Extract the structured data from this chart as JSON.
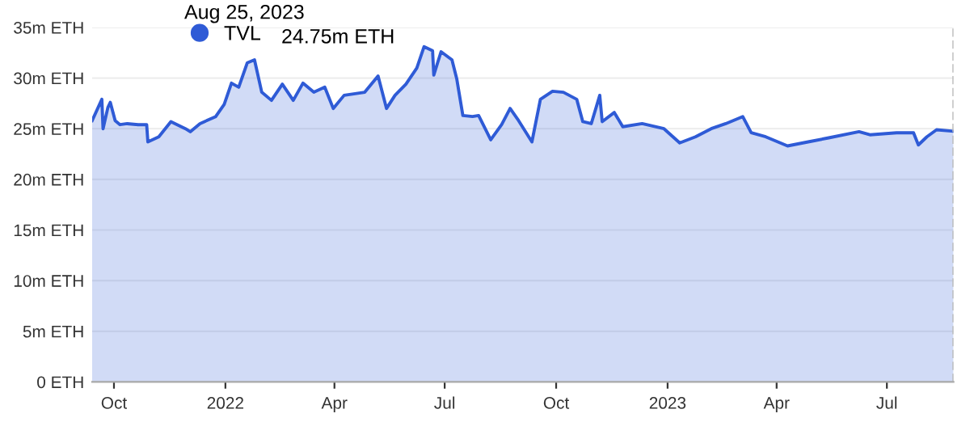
{
  "chart_data": {
    "type": "area",
    "x": [
      "2021-09-13",
      "2021-09-21",
      "2021-09-22",
      "2021-09-26",
      "2021-09-28",
      "2021-10-02",
      "2021-10-06",
      "2021-10-12",
      "2021-10-21",
      "2021-10-28",
      "2021-10-29",
      "2021-11-07",
      "2021-11-17",
      "2021-11-29",
      "2021-12-03",
      "2021-12-11",
      "2021-12-24",
      "2021-12-31",
      "2022-01-06",
      "2022-01-12",
      "2022-01-19",
      "2022-01-25",
      "2022-01-31",
      "2022-02-08",
      "2022-02-17",
      "2022-02-26",
      "2022-03-06",
      "2022-03-15",
      "2022-03-24",
      "2022-03-31",
      "2022-04-09",
      "2022-04-26",
      "2022-05-07",
      "2022-05-14",
      "2022-05-21",
      "2022-05-30",
      "2022-06-08",
      "2022-06-14",
      "2022-06-21",
      "2022-06-22",
      "2022-06-28",
      "2022-07-07",
      "2022-07-11",
      "2022-07-16",
      "2022-07-24",
      "2022-07-29",
      "2022-08-08",
      "2022-08-17",
      "2022-08-24",
      "2022-08-31",
      "2022-09-11",
      "2022-09-18",
      "2022-09-28",
      "2022-10-07",
      "2022-10-18",
      "2022-10-23",
      "2022-10-30",
      "2022-11-06",
      "2022-11-08",
      "2022-11-18",
      "2022-11-25",
      "2022-12-11",
      "2022-12-29",
      "2023-01-11",
      "2023-01-24",
      "2023-02-06",
      "2023-02-18",
      "2023-03-04",
      "2023-03-11",
      "2023-03-23",
      "2023-04-10",
      "2023-04-27",
      "2023-05-14",
      "2023-06-08",
      "2023-06-17",
      "2023-07-09",
      "2023-07-23",
      "2023-07-27",
      "2023-08-03",
      "2023-08-11",
      "2023-08-25"
    ],
    "series": [
      {
        "name": "TVL",
        "color": "#2f5bd6",
        "values": [
          25.8,
          27.9,
          25.0,
          27.1,
          27.6,
          25.8,
          25.4,
          25.5,
          25.4,
          25.4,
          23.7,
          24.2,
          25.7,
          25.0,
          24.7,
          25.5,
          26.2,
          27.4,
          29.5,
          29.1,
          31.5,
          31.8,
          28.6,
          27.8,
          29.4,
          27.8,
          29.5,
          28.6,
          29.1,
          27.0,
          28.3,
          28.6,
          30.2,
          27.0,
          28.3,
          29.4,
          31.0,
          33.1,
          32.7,
          30.3,
          32.6,
          31.8,
          29.9,
          26.3,
          26.2,
          26.3,
          23.9,
          25.4,
          27.0,
          25.8,
          23.7,
          27.9,
          28.7,
          28.6,
          27.9,
          25.7,
          25.5,
          28.3,
          25.7,
          26.6,
          25.2,
          25.5,
          25.0,
          23.6,
          24.2,
          25.0,
          25.5,
          26.2,
          24.6,
          24.2,
          23.3,
          23.7,
          24.1,
          24.7,
          24.4,
          24.6,
          24.6,
          23.4,
          24.2,
          24.9,
          24.75
        ]
      }
    ],
    "xlim": [
      "2021-09-13",
      "2023-08-25"
    ],
    "xticks": [
      {
        "value": "2021-10-01",
        "label": "Oct"
      },
      {
        "value": "2022-01-01",
        "label": "2022"
      },
      {
        "value": "2022-04-01",
        "label": "Apr"
      },
      {
        "value": "2022-07-01",
        "label": "Jul"
      },
      {
        "value": "2022-10-01",
        "label": "Oct"
      },
      {
        "value": "2023-01-01",
        "label": "2023"
      },
      {
        "value": "2023-04-01",
        "label": "Apr"
      },
      {
        "value": "2023-07-01",
        "label": "Jul"
      }
    ],
    "ylim": [
      0,
      35
    ],
    "yticks": [
      {
        "value": 0,
        "label": "0 ETH"
      },
      {
        "value": 5,
        "label": "5m ETH"
      },
      {
        "value": 10,
        "label": "10m ETH"
      },
      {
        "value": 15,
        "label": "15m ETH"
      },
      {
        "value": 20,
        "label": "20m ETH"
      },
      {
        "value": 25,
        "label": "25m ETH"
      },
      {
        "value": 30,
        "label": "30m ETH"
      },
      {
        "value": 35,
        "label": "35m ETH"
      }
    ],
    "grid": "y",
    "legend": "top left",
    "marker": "none",
    "line_style": "solid",
    "annotations": [
      "Aug 25, 2023",
      "24.75m ETH"
    ],
    "ref_lines": [
      {
        "axis": "x",
        "value": "2023-08-25",
        "label": null,
        "color": "#bbbbbb",
        "line_style": "dashed"
      }
    ]
  }
}
